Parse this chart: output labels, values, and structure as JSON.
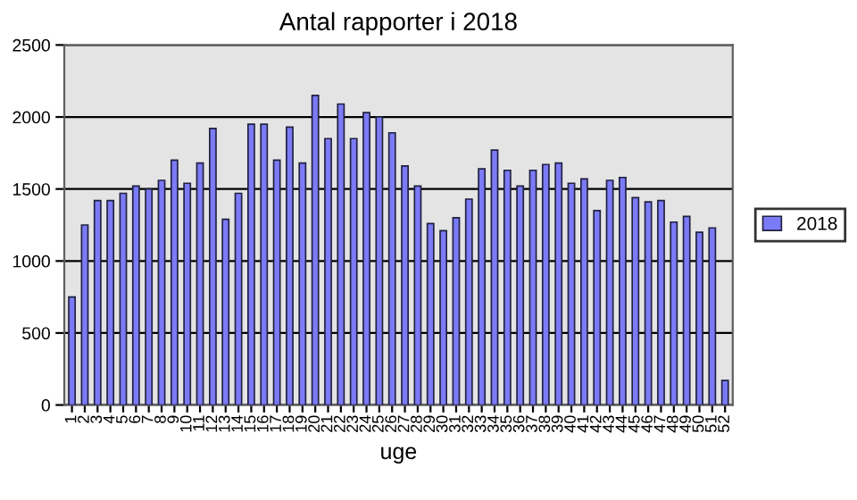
{
  "chart_data": {
    "type": "bar",
    "title": "Antal rapporter i 2018",
    "xlabel": "uge",
    "categories": [
      "1",
      "2",
      "3",
      "4",
      "5",
      "6",
      "7",
      "8",
      "9",
      "10",
      "11",
      "12",
      "13",
      "14",
      "15",
      "16",
      "17",
      "18",
      "19",
      "20",
      "21",
      "22",
      "23",
      "24",
      "25",
      "26",
      "27",
      "28",
      "29",
      "30",
      "31",
      "32",
      "33",
      "34",
      "35",
      "36",
      "37",
      "38",
      "39",
      "40",
      "41",
      "42",
      "43",
      "44",
      "45",
      "46",
      "47",
      "48",
      "49",
      "50",
      "51",
      "52"
    ],
    "series": [
      {
        "name": "2018",
        "color": "#7b7bf7",
        "values": [
          750,
          1250,
          1420,
          1420,
          1470,
          1520,
          1500,
          1560,
          1700,
          1540,
          1680,
          1920,
          1290,
          1470,
          1950,
          1950,
          1700,
          1930,
          1680,
          2150,
          1850,
          2090,
          1850,
          2030,
          2000,
          1890,
          1660,
          1520,
          1260,
          1210,
          1300,
          1430,
          1640,
          1770,
          1630,
          1520,
          1630,
          1670,
          1680,
          1540,
          1570,
          1350,
          1560,
          1580,
          1440,
          1410,
          1420,
          1270,
          1310,
          1200,
          1230,
          170
        ]
      }
    ],
    "ylim": [
      0,
      2500
    ],
    "yticks": [
      0,
      500,
      1000,
      1500,
      2000,
      2500
    ],
    "grid": "y",
    "legend": "right"
  }
}
